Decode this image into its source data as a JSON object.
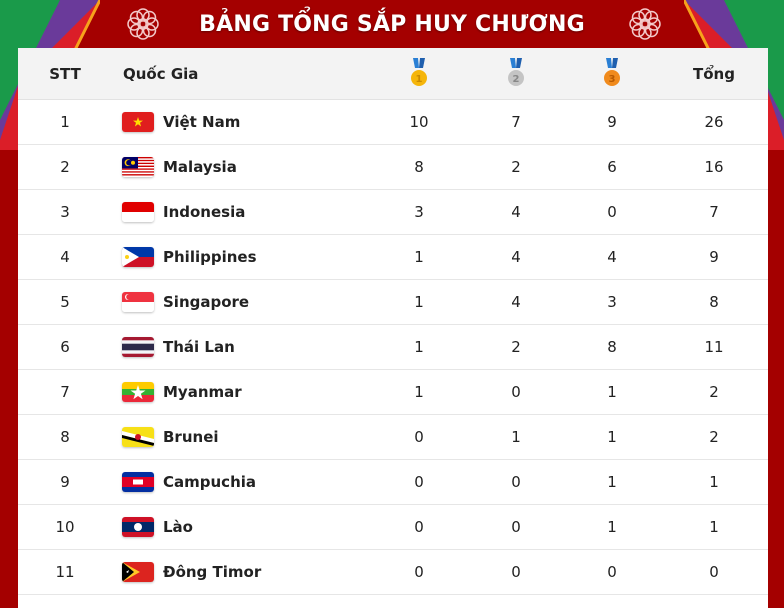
{
  "title": "BẢNG TỔNG SẮP HUY CHƯƠNG",
  "colors": {
    "background": "#a40000",
    "gold": "#f5b50a",
    "silver": "#b8b8b8",
    "bronze": "#f08a1c",
    "ribbon": "#2a7fd4"
  },
  "header": {
    "stt": "STT",
    "country": "Quốc Gia",
    "gold_icon": "gold-medal-icon",
    "gold_num": "1",
    "silver_icon": "silver-medal-icon",
    "silver_num": "2",
    "bronze_icon": "bronze-medal-icon",
    "bronze_num": "3",
    "total": "Tổng"
  },
  "rows": [
    {
      "stt": "1",
      "flag": "vietnam",
      "country": "Việt Nam",
      "gold": "10",
      "silver": "7",
      "bronze": "9",
      "total": "26"
    },
    {
      "stt": "2",
      "flag": "malaysia",
      "country": "Malaysia",
      "gold": "8",
      "silver": "2",
      "bronze": "6",
      "total": "16"
    },
    {
      "stt": "3",
      "flag": "indonesia",
      "country": "Indonesia",
      "gold": "3",
      "silver": "4",
      "bronze": "0",
      "total": "7"
    },
    {
      "stt": "4",
      "flag": "philippines",
      "country": "Philippines",
      "gold": "1",
      "silver": "4",
      "bronze": "4",
      "total": "9"
    },
    {
      "stt": "5",
      "flag": "singapore",
      "country": "Singapore",
      "gold": "1",
      "silver": "4",
      "bronze": "3",
      "total": "8"
    },
    {
      "stt": "6",
      "flag": "thailand",
      "country": "Thái Lan",
      "gold": "1",
      "silver": "2",
      "bronze": "8",
      "total": "11"
    },
    {
      "stt": "7",
      "flag": "myanmar",
      "country": "Myanmar",
      "gold": "1",
      "silver": "0",
      "bronze": "1",
      "total": "2"
    },
    {
      "stt": "8",
      "flag": "brunei",
      "country": "Brunei",
      "gold": "0",
      "silver": "1",
      "bronze": "1",
      "total": "2"
    },
    {
      "stt": "9",
      "flag": "cambodia",
      "country": "Campuchia",
      "gold": "0",
      "silver": "0",
      "bronze": "1",
      "total": "1"
    },
    {
      "stt": "10",
      "flag": "laos",
      "country": "Lào",
      "gold": "0",
      "silver": "0",
      "bronze": "1",
      "total": "1"
    },
    {
      "stt": "11",
      "flag": "timor-leste",
      "country": "Đông Timor",
      "gold": "0",
      "silver": "0",
      "bronze": "0",
      "total": "0"
    }
  ]
}
